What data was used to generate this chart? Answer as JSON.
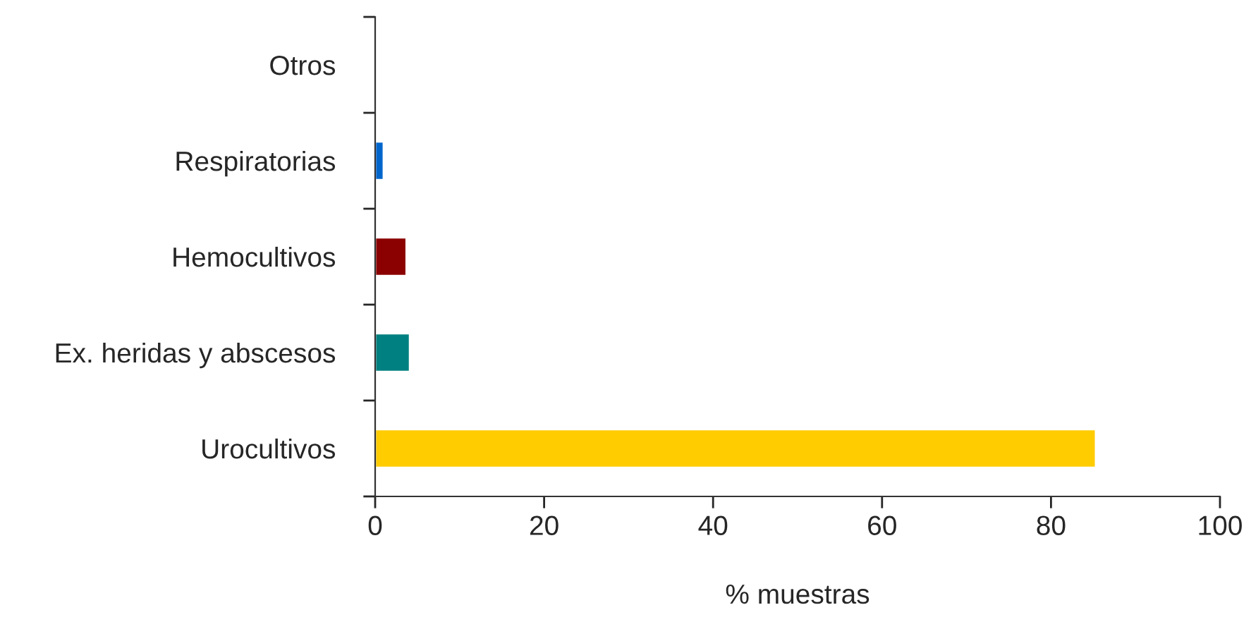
{
  "chart_data": {
    "type": "bar",
    "orientation": "horizontal",
    "xlabel": "% muestras",
    "categories": [
      "Otros",
      "Respiratorias",
      "Hemocultivos",
      "Ex. heridas y abscesos",
      "Urocultivos"
    ],
    "values": [
      0.2,
      1.0,
      3.7,
      4.1,
      85.3
    ],
    "colors": [
      "#000000",
      "#0066cc",
      "#8b0000",
      "#008080",
      "#ffcc00"
    ],
    "xlim": [
      0,
      100
    ],
    "xticks": [
      0,
      20,
      40,
      60,
      80,
      100
    ],
    "grid": false,
    "legend": false
  }
}
